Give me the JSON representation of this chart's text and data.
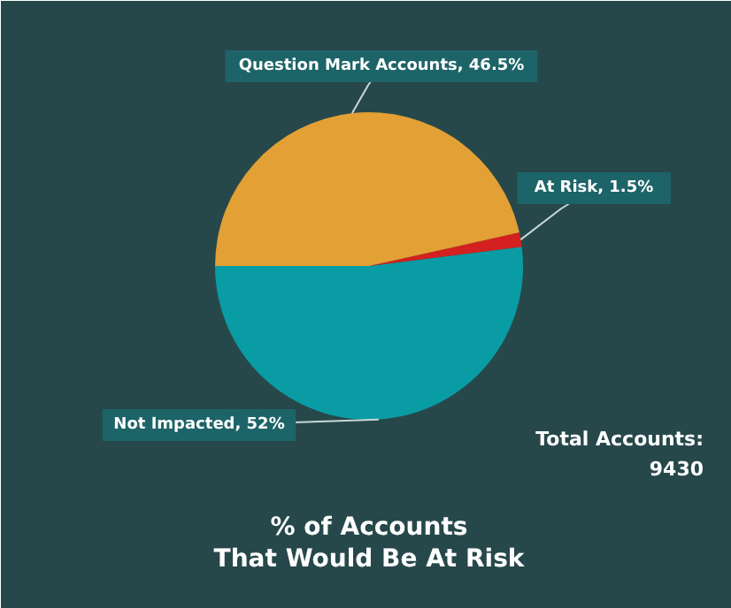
{
  "chart_data": {
    "type": "pie",
    "title": "% of Accounts\nThat Would Be At Risk",
    "categories": [
      "Not Impacted",
      "At Risk",
      "Question Mark Accounts"
    ],
    "values": [
      52,
      1.5,
      46.5
    ],
    "value_labels": [
      "52%",
      "1.5%",
      "46.5%"
    ],
    "colors": [
      "#0a9ca4",
      "#d42020",
      "#e3a035"
    ],
    "annotations": [
      "Total Accounts:\n9430"
    ]
  }
}
